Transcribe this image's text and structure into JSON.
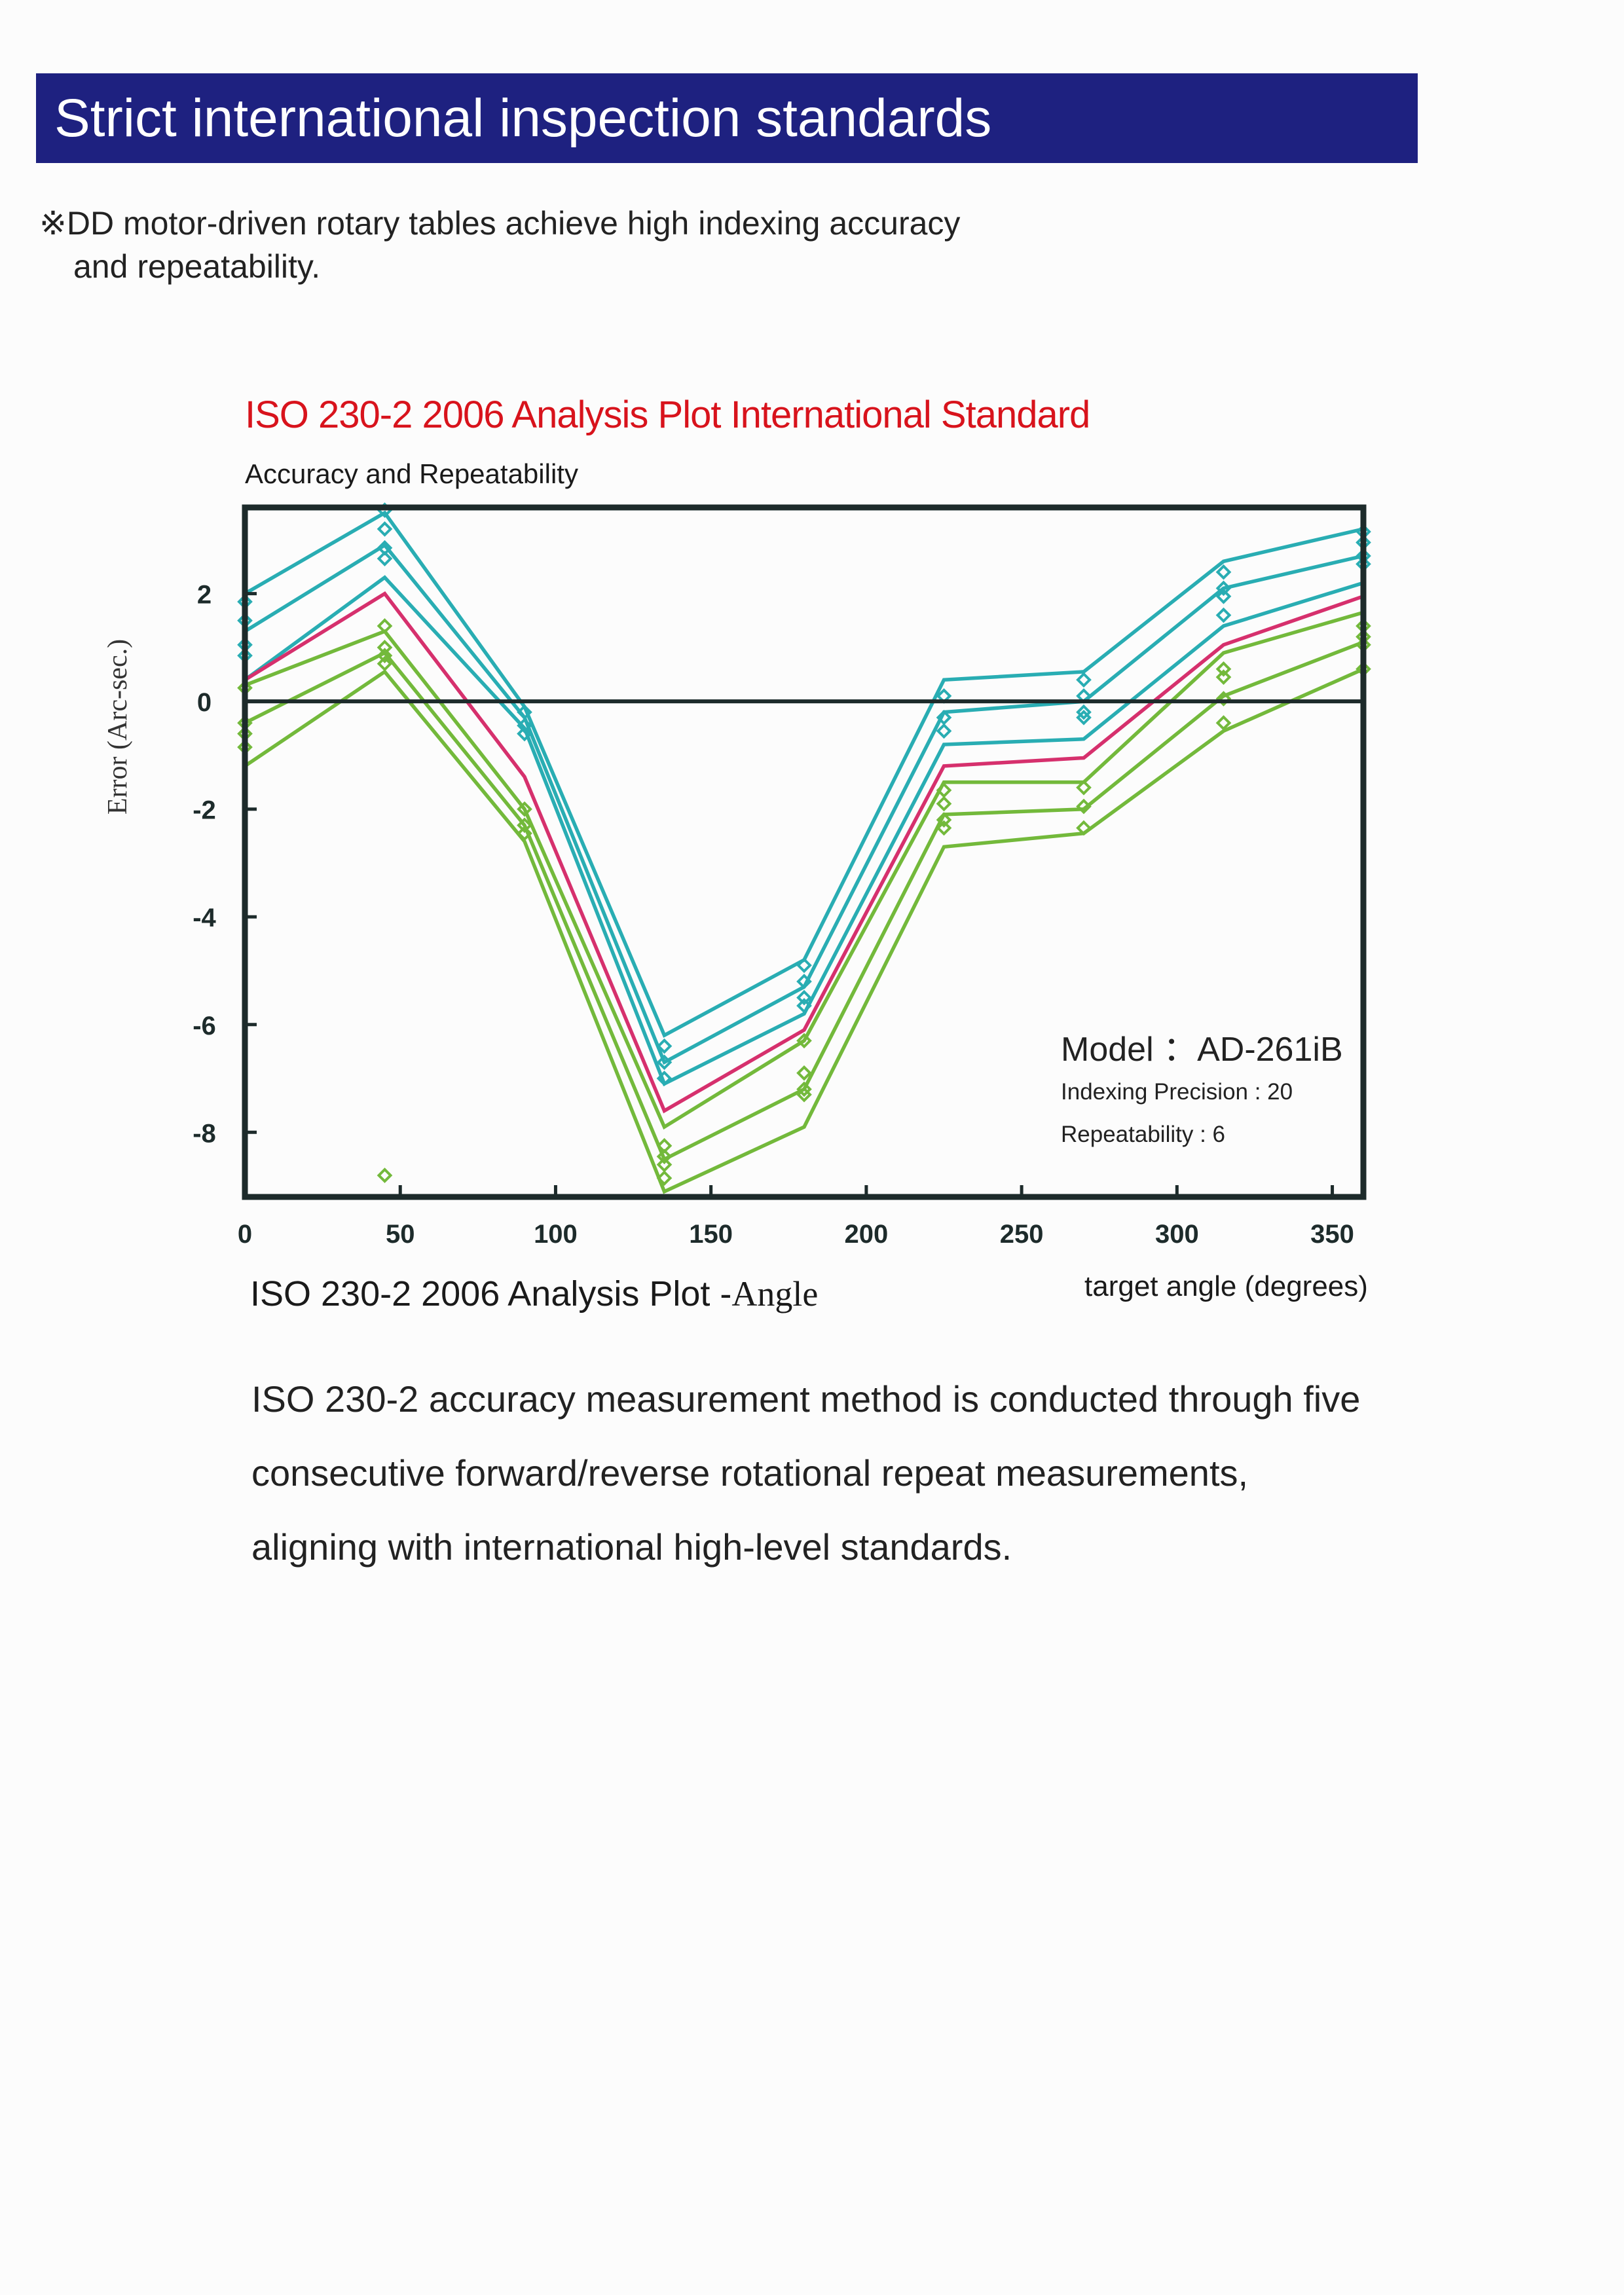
{
  "header": {
    "title": "Strict international inspection standards",
    "note_line1": "※DD motor-driven rotary tables achieve high indexing accuracy",
    "note_line2": "and repeatability."
  },
  "figure": {
    "title": "ISO 230-2 2006 Analysis Plot International Standard",
    "subtitle": "Accuracy and Repeatability",
    "model": "Model ：AD-261iB",
    "indexing_precision": "Indexing Precision :  20",
    "repeatability": "Repeatability : 6",
    "caption_main": "ISO 230-2 2006 Analysis Plot -",
    "caption_tail": "Angle"
  },
  "body_lines": [
    "ISO 230-2 accuracy measurement method is conducted through five",
    "consecutive forward/reverse rotational repeat measurements,",
    "aligning with international high-level standards."
  ],
  "colors": {
    "banner": "#1e2180",
    "title_red": "#d8131c",
    "teal": "#29adb3",
    "green": "#73b93b",
    "magenta": "#d6306d",
    "axis": "#1d2b2b"
  },
  "chart_data": {
    "type": "line",
    "xlabel": "target angle (degrees)",
    "ylabel": "Error (Arc-sec.)",
    "xlim": [
      0,
      360
    ],
    "ylim": [
      -9.2,
      3.6
    ],
    "xticks": [
      0,
      50,
      100,
      150,
      200,
      250,
      300,
      350
    ],
    "yticks": [
      2,
      0,
      -2,
      -4,
      -6,
      -8
    ],
    "x": [
      0,
      45,
      90,
      135,
      180,
      225,
      270,
      315,
      360
    ],
    "series": [
      {
        "color": "teal",
        "values": [
          2.0,
          3.5,
          -0.1,
          -6.2,
          -4.8,
          0.4,
          0.55,
          2.6,
          3.2
        ]
      },
      {
        "color": "teal",
        "values": [
          1.3,
          2.9,
          -0.3,
          -6.7,
          -5.3,
          -0.2,
          0.0,
          2.1,
          2.7
        ]
      },
      {
        "color": "teal",
        "values": [
          0.4,
          2.3,
          -0.5,
          -7.1,
          -5.8,
          -0.8,
          -0.7,
          1.4,
          2.2
        ]
      },
      {
        "color": "magenta",
        "values": [
          0.4,
          2.0,
          -1.4,
          -7.6,
          -6.1,
          -1.2,
          -1.05,
          1.05,
          1.95
        ]
      },
      {
        "color": "green",
        "values": [
          0.3,
          1.3,
          -2.0,
          -7.9,
          -6.3,
          -1.5,
          -1.5,
          0.9,
          1.65
        ]
      },
      {
        "color": "green",
        "values": [
          -0.4,
          0.9,
          -2.3,
          -8.5,
          -7.2,
          -2.1,
          -2.0,
          0.1,
          1.1
        ]
      },
      {
        "color": "green",
        "values": [
          -1.2,
          0.55,
          -2.6,
          -9.1,
          -7.9,
          -2.7,
          -2.45,
          -0.55,
          0.6
        ]
      }
    ],
    "markers": [
      {
        "color": "teal",
        "x": 0,
        "values": [
          1.85,
          1.5,
          1.05,
          0.85
        ]
      },
      {
        "color": "teal",
        "x": 45,
        "values": [
          3.55,
          3.2,
          2.85,
          2.65
        ]
      },
      {
        "color": "teal",
        "x": 90,
        "values": [
          -0.2,
          -0.45,
          -0.6
        ]
      },
      {
        "color": "teal",
        "x": 135,
        "values": [
          -6.4,
          -6.7,
          -7.0
        ]
      },
      {
        "color": "teal",
        "x": 180,
        "values": [
          -4.9,
          -5.2,
          -5.5,
          -5.65
        ]
      },
      {
        "color": "teal",
        "x": 225,
        "values": [
          0.1,
          -0.3,
          -0.55
        ]
      },
      {
        "color": "teal",
        "x": 270,
        "values": [
          0.4,
          0.1,
          -0.2,
          -0.3
        ]
      },
      {
        "color": "teal",
        "x": 315,
        "values": [
          2.4,
          2.1,
          1.95,
          1.6
        ]
      },
      {
        "color": "teal",
        "x": 360,
        "values": [
          3.15,
          2.95,
          2.7,
          2.55
        ]
      },
      {
        "color": "green",
        "x": 0,
        "values": [
          0.25,
          -0.4,
          -0.6,
          -0.85
        ]
      },
      {
        "color": "green",
        "x": 45,
        "values": [
          1.4,
          1.0,
          0.85,
          0.7
        ]
      },
      {
        "color": "green",
        "x": 90,
        "values": [
          -2.0,
          -2.3,
          -2.45
        ]
      },
      {
        "color": "green",
        "x": 135,
        "values": [
          -8.25,
          -8.45,
          -8.6,
          -8.85
        ]
      },
      {
        "color": "green",
        "x": 180,
        "values": [
          -6.3,
          -6.9,
          -7.2,
          -7.3
        ]
      },
      {
        "color": "green",
        "x": 225,
        "values": [
          -1.65,
          -1.9,
          -2.2,
          -2.35
        ]
      },
      {
        "color": "green",
        "x": 270,
        "values": [
          -1.6,
          -1.95,
          -2.35
        ]
      },
      {
        "color": "green",
        "x": 315,
        "values": [
          0.6,
          0.45,
          0.05,
          -0.4
        ]
      },
      {
        "color": "green",
        "x": 360,
        "values": [
          1.4,
          1.2,
          1.05,
          0.6
        ]
      },
      {
        "color": "green",
        "x": 45,
        "values": [
          -8.8
        ]
      }
    ]
  }
}
